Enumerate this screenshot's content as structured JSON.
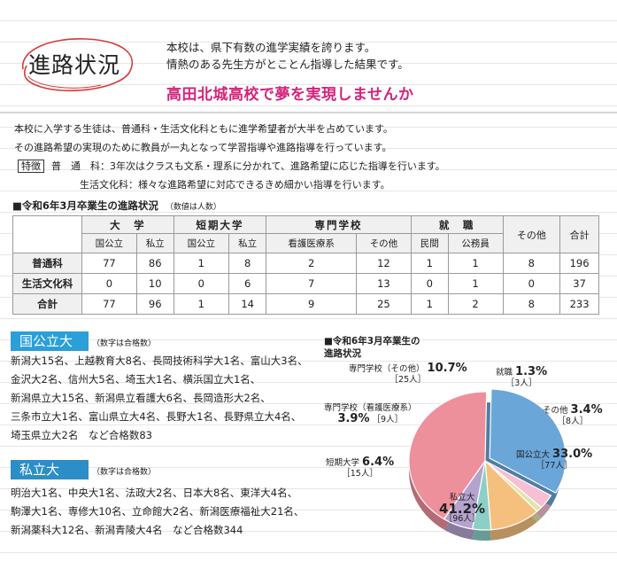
{
  "title": "進路状況",
  "intro": [
    "本校は、県下有数の進学実績を誇ります。",
    "情熱のある先生方がとことん指導した結果です。"
  ],
  "slogan": "高田北城高校で夢を実現しませんか",
  "desc": {
    "line1": "本校に入学する生徒は、普通科・生活文化科ともに進学希望者が大半を占めています。",
    "line2": "その進路希望の実現のために教員が一丸となって学習指導や進路指導を行っています。",
    "tokucho": "特徴",
    "line3": "普　通　科：3年次はクラスも文系・理系に分かれて、進路希望に応じた指導を行います。",
    "line4": "生活文化科：様々な進路希望に対応できるきめ細かい指導を行います。"
  },
  "table": {
    "title": "■令和6年3月卒業生の進路状況",
    "note": "（数値は人数）",
    "groups": [
      "大　学",
      "短期大学",
      "専門学校",
      "就　職"
    ],
    "subs": [
      "国公立",
      "私立",
      "国公立",
      "私立",
      "看護医療系",
      "その他",
      "民間",
      "公務員"
    ],
    "other": "その他",
    "total": "合計",
    "rows": [
      {
        "label": "普通科",
        "cells": [
          "77",
          "86",
          "1",
          "8",
          "2",
          "12",
          "1",
          "1",
          "8",
          "196"
        ]
      },
      {
        "label": "生活文化科",
        "cells": [
          "0",
          "10",
          "0",
          "6",
          "7",
          "13",
          "0",
          "1",
          "0",
          "37"
        ]
      },
      {
        "label": "合計",
        "cells": [
          "77",
          "96",
          "1",
          "14",
          "9",
          "25",
          "1",
          "2",
          "8",
          "233"
        ]
      }
    ]
  },
  "national": {
    "label": "国公立大",
    "note": "（数字は合格数）",
    "lines": [
      "新潟大15名、上越教育大8名、長岡技術科学大1名、富山大3名、",
      "金沢大2名、信州大5名、埼玉大1名、横浜国立大1名、",
      "新潟県立大15名、新潟県立看護大6名、長岡造形大2名、",
      "三条市立大1名、富山県立大4名、長野大1名、長野県立大4名、",
      "埼玉県立大2名　など合格数83"
    ]
  },
  "private": {
    "label": "私立大",
    "note": "（数字は合格数）",
    "lines": [
      "明治大1名、中央大1名、法政大2名、日本大8名、東洋大4名、",
      "駒澤大1名、専修大10名、立命館大2名、新潟医療福祉大21名、",
      "新潟薬科大12名、新潟青陵大4名　など合格数344"
    ]
  },
  "chart_data": {
    "type": "pie",
    "title": "■令和6年3月卒業生の\n進路状況",
    "slices": [
      {
        "label": "国公立大",
        "percent": "33.0%",
        "count": "［77人］",
        "value": 33.0,
        "color": "#6aa6d8"
      },
      {
        "label": "私立大",
        "percent": "41.2%",
        "count": "［96人］",
        "value": 41.2,
        "color": "#ee8f9c"
      },
      {
        "label": "短期大学",
        "percent": "6.4%",
        "count": "［15人］",
        "value": 6.4,
        "color": "#b4a3cf"
      },
      {
        "label": "専門学校（看護医療系）",
        "percent": "3.9%",
        "count": "［9人］",
        "value": 3.9,
        "color": "#8ccfc6"
      },
      {
        "label": "専門学校（その他）",
        "percent": "10.7%",
        "count": "［25人］",
        "value": 10.7,
        "color": "#f5c07e"
      },
      {
        "label": "就職",
        "percent": "1.3%",
        "count": "［3人］",
        "value": 1.3,
        "color": "#dfe6a8"
      },
      {
        "label": "その他",
        "percent": "3.4%",
        "count": "［8人］",
        "value": 3.4,
        "color": "#f6bfd3"
      }
    ]
  }
}
